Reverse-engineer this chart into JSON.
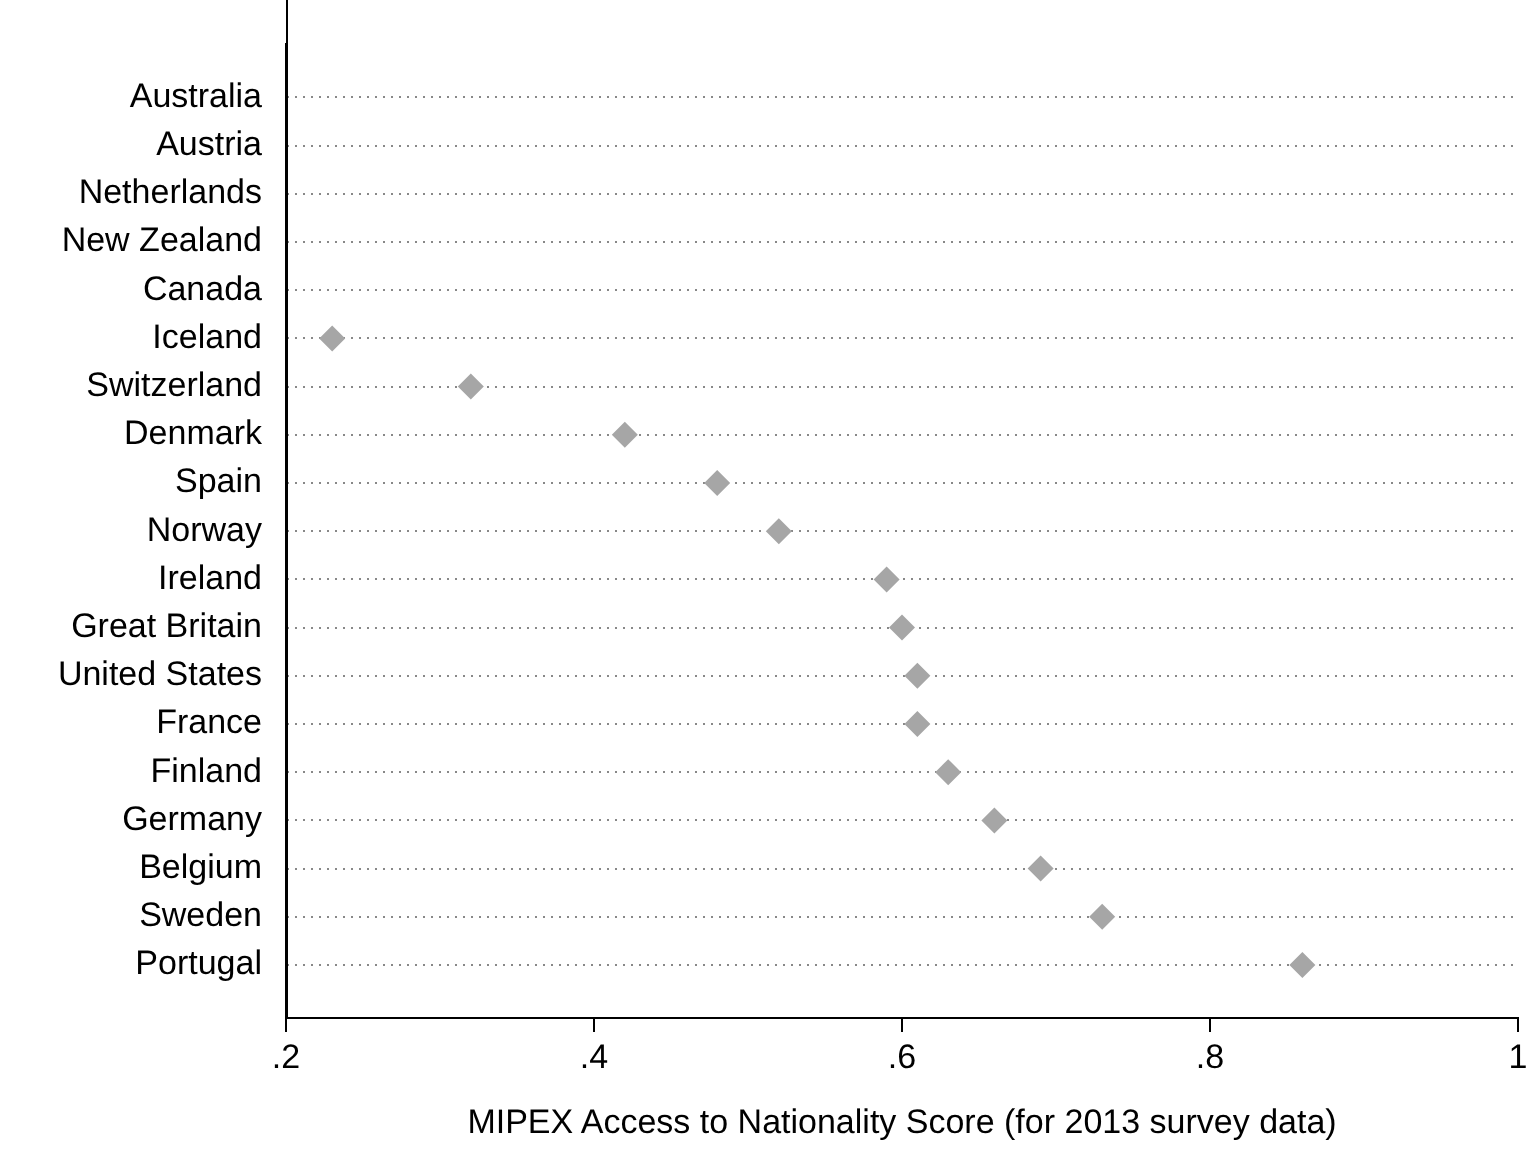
{
  "chart_data": {
    "type": "scatter",
    "orientation": "horizontal",
    "xlabel": "MIPEX Access to Nationality Score (for 2013 survey data)",
    "categories": [
      "Australia",
      "Austria",
      "Netherlands",
      "New Zealand",
      "Canada",
      "Iceland",
      "Switzerland",
      "Denmark",
      "Spain",
      "Norway",
      "Ireland",
      "Great Britain",
      "United States",
      "France",
      "Finland",
      "Germany",
      "Belgium",
      "Sweden",
      "Portugal"
    ],
    "series": [
      {
        "color": "#a6a6a6",
        "values": [
          null,
          null,
          null,
          null,
          null,
          0.23,
          0.32,
          0.42,
          0.48,
          0.52,
          0.59,
          0.6,
          0.61,
          0.61,
          0.63,
          0.66,
          0.69,
          0.73,
          0.86
        ]
      }
    ],
    "xlim": [
      0.2,
      1
    ],
    "xticks": [
      {
        "value": 0.2,
        "label": ".2"
      },
      {
        "value": 0.4,
        "label": ".4"
      },
      {
        "value": 0.6,
        "label": ".6"
      },
      {
        "value": 0.8,
        "label": ".8"
      },
      1
    ],
    "grid": "y",
    "marker": "diamond",
    "legend": false
  }
}
